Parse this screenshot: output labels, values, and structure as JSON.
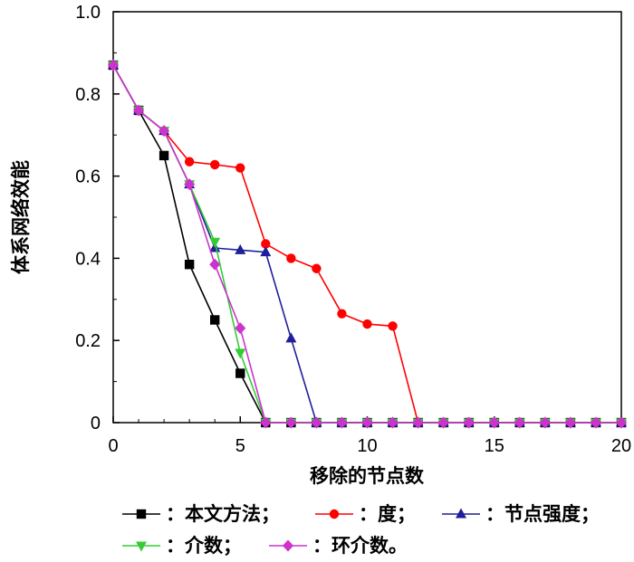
{
  "chart_data": {
    "type": "line",
    "xlabel": "移除的节点数",
    "ylabel": "体系网络效能",
    "xlim": [
      0,
      20
    ],
    "ylim": [
      0,
      1.0
    ],
    "x_ticks": [
      "0",
      "5",
      "10",
      "15",
      "20"
    ],
    "y_ticks": [
      "0",
      "0.2",
      "0.4",
      "0.6",
      "0.8",
      "1.0"
    ],
    "grid": false,
    "legend_position": "bottom",
    "series": [
      {
        "name": "：本文方法；",
        "color": "#000000",
        "marker": "square",
        "x": [
          0,
          1,
          2,
          3,
          4,
          5,
          6,
          7,
          8,
          9,
          10,
          11,
          12,
          13,
          14,
          15,
          16,
          17,
          18,
          19,
          20
        ],
        "y": [
          0.87,
          0.76,
          0.65,
          0.385,
          0.25,
          0.12,
          0,
          0,
          0,
          0,
          0,
          0,
          0,
          0,
          0,
          0,
          0,
          0,
          0,
          0,
          0
        ]
      },
      {
        "name": "：度；",
        "color": "#ff0000",
        "marker": "circle",
        "x": [
          0,
          1,
          2,
          3,
          4,
          5,
          6,
          7,
          8,
          9,
          10,
          11,
          12,
          13,
          14,
          15,
          16,
          17,
          18,
          19,
          20
        ],
        "y": [
          0.87,
          0.76,
          0.71,
          0.635,
          0.628,
          0.62,
          0.435,
          0.4,
          0.375,
          0.265,
          0.24,
          0.235,
          0,
          0,
          0,
          0,
          0,
          0,
          0,
          0,
          0
        ]
      },
      {
        "name": "：节点强度；",
        "color": "#1f1f9a",
        "marker": "triangle-up",
        "x": [
          0,
          1,
          2,
          3,
          4,
          5,
          6,
          7,
          8,
          9,
          10,
          11,
          12,
          13,
          14,
          15,
          16,
          17,
          18,
          19,
          20
        ],
        "y": [
          0.87,
          0.76,
          0.71,
          0.58,
          0.425,
          0.42,
          0.415,
          0.205,
          0,
          0,
          0,
          0,
          0,
          0,
          0,
          0,
          0,
          0,
          0,
          0,
          0
        ]
      },
      {
        "name": "：介数；",
        "color": "#33cc33",
        "marker": "triangle-down",
        "x": [
          0,
          1,
          2,
          3,
          4,
          5,
          6,
          7,
          8,
          9,
          10,
          11,
          12,
          13,
          14,
          15,
          16,
          17,
          18,
          19,
          20
        ],
        "y": [
          0.87,
          0.76,
          0.71,
          0.58,
          0.44,
          0.17,
          0,
          0,
          0,
          0,
          0,
          0,
          0,
          0,
          0,
          0,
          0,
          0,
          0,
          0,
          0
        ]
      },
      {
        "name": "：环介数。",
        "color": "#cc33cc",
        "marker": "diamond",
        "x": [
          0,
          1,
          2,
          3,
          4,
          5,
          6,
          7,
          8,
          9,
          10,
          11,
          12,
          13,
          14,
          15,
          16,
          17,
          18,
          19,
          20
        ],
        "y": [
          0.87,
          0.76,
          0.71,
          0.58,
          0.385,
          0.23,
          0,
          0,
          0,
          0,
          0,
          0,
          0,
          0,
          0,
          0,
          0,
          0,
          0,
          0,
          0
        ]
      }
    ]
  }
}
